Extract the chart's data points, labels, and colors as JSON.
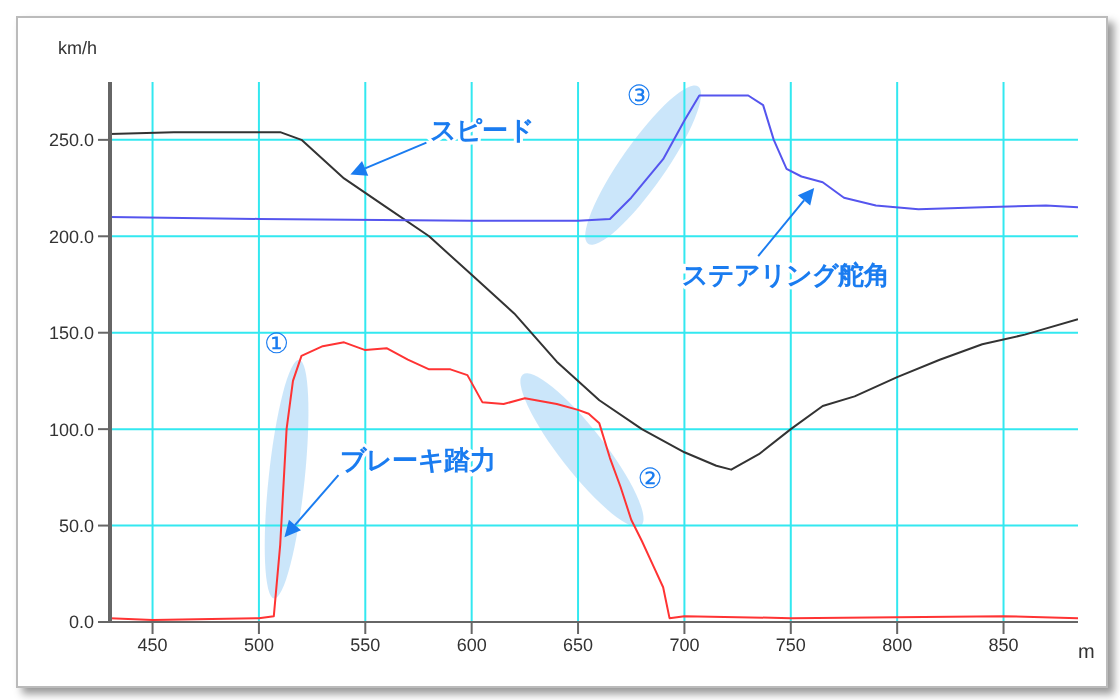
{
  "chart_data": {
    "type": "line",
    "xlabel": "m",
    "ylabel": "km/h",
    "xlim": [
      430,
      885
    ],
    "xticks": [
      450,
      500,
      550,
      600,
      650,
      700,
      750,
      800,
      850
    ],
    "ylim": [
      0,
      280
    ],
    "yticks": [
      {
        "value": 0,
        "label": "0.0"
      },
      {
        "value": 50,
        "label": "50.0"
      },
      {
        "value": 100,
        "label": "100.0"
      },
      {
        "value": 150,
        "label": "150.0"
      },
      {
        "value": 200,
        "label": "200.0"
      },
      {
        "value": 250,
        "label": "250.0"
      }
    ],
    "grid": true,
    "marker": "none",
    "line_style": "solid",
    "series": [
      {
        "color": "#333333",
        "x": [
          430,
          460,
          510,
          520,
          540,
          560,
          580,
          600,
          620,
          640,
          660,
          680,
          700,
          715,
          722,
          735,
          750,
          765,
          780,
          800,
          820,
          840,
          860,
          885
        ],
        "values": [
          253,
          254,
          254,
          250,
          230,
          215,
          200,
          180,
          160,
          135,
          115,
          100,
          88,
          81,
          79,
          87,
          100,
          112,
          117,
          127,
          136,
          144,
          149,
          157
        ]
      },
      {
        "color": "#5555ee",
        "x": [
          430,
          500,
          600,
          650,
          665,
          675,
          690,
          700,
          707,
          730,
          737,
          742,
          748,
          755,
          765,
          775,
          790,
          810,
          840,
          870,
          885
        ],
        "values": [
          210,
          209,
          208,
          208,
          209,
          220,
          240,
          260,
          273,
          273,
          268,
          250,
          235,
          231,
          228,
          220,
          216,
          214,
          215,
          216,
          215
        ]
      },
      {
        "color": "#ff3333",
        "x": [
          430,
          450,
          500,
          507,
          510,
          513,
          516,
          520,
          530,
          540,
          550,
          560,
          570,
          580,
          590,
          598,
          605,
          615,
          625,
          640,
          650,
          655,
          660,
          665,
          670,
          675,
          680,
          685,
          690,
          693,
          700,
          750,
          850,
          885
        ],
        "values": [
          2,
          1,
          2,
          3,
          40,
          100,
          125,
          138,
          143,
          145,
          141,
          142,
          136,
          131,
          131,
          128,
          114,
          113,
          116,
          113,
          110,
          108,
          103,
          85,
          70,
          53,
          42,
          30,
          18,
          2,
          3,
          2,
          3,
          2
        ]
      }
    ],
    "annotations": [
      {
        "text": "スピード",
        "x": 543,
        "y": 232
      },
      {
        "text": "ブレーキ踏力",
        "x": 512,
        "y": 44
      },
      {
        "text": "ステアリング舵角",
        "x": 761,
        "y": 225
      },
      {
        "text": "①",
        "x": 513,
        "y": 100
      },
      {
        "text": "②",
        "x": 665,
        "y": 85
      },
      {
        "text": "③",
        "x": 690,
        "y": 240
      }
    ]
  }
}
